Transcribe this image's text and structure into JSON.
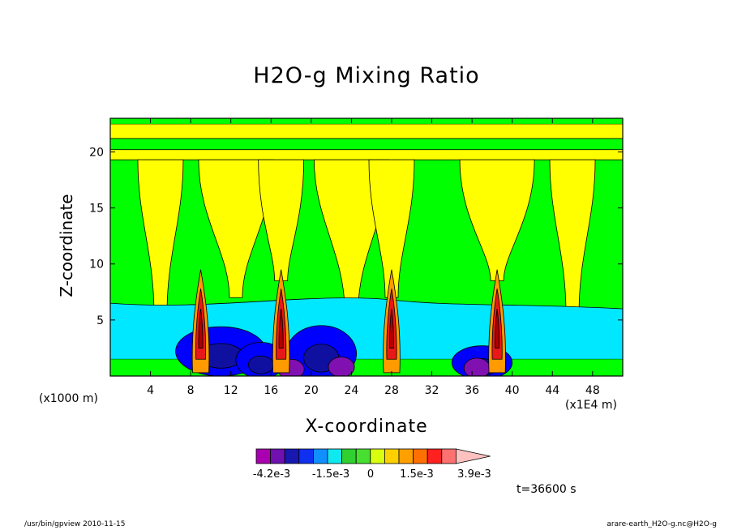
{
  "chart_data": {
    "type": "heatmap",
    "title": "H2O-g Mixing Ratio",
    "xlabel": "X-coordinate",
    "ylabel": "Z-coordinate",
    "x_unit_left": "(x1000 m)",
    "x_unit_right": "(x1E4 m)",
    "xlim": [
      0,
      51
    ],
    "ylim": [
      0,
      23
    ],
    "x_ticks": [
      4,
      8,
      12,
      16,
      20,
      24,
      28,
      32,
      36,
      40,
      44,
      48
    ],
    "y_ticks": [
      5,
      10,
      15,
      20
    ],
    "colorbar": {
      "colors": [
        "#a800b0",
        "#7010b0",
        "#1818b0",
        "#1030f0",
        "#1090ff",
        "#10e8f0",
        "#30d030",
        "#48e030",
        "#d8ff10",
        "#ffd000",
        "#ffa000",
        "#ff7000",
        "#ff2020",
        "#ff7070",
        "#ffc0c0"
      ],
      "labels": [
        "-4.2e-3",
        "-1.5e-3",
        "0",
        "1.5e-3",
        "3.9e-3"
      ]
    },
    "time_label": "t=36600 s",
    "plumes_x": [
      9,
      17,
      28,
      38.5
    ],
    "anvils_x": [
      5,
      12.5,
      17,
      24,
      28,
      38.5,
      46
    ],
    "grid": false
  },
  "footer": {
    "left": "/usr/bin/gpview  2010-11-15",
    "right": "arare-earth_H2O-g.nc@H2O-g"
  },
  "colors": {
    "background": "#00ff00",
    "yellow": "#ffff00",
    "cyan": "#00e8ff",
    "blue": "#0000ff",
    "navy": "#1010a0",
    "purple": "#8010b0",
    "orange": "#ff9a00",
    "red": "#e81818",
    "darkred": "#b00000"
  }
}
